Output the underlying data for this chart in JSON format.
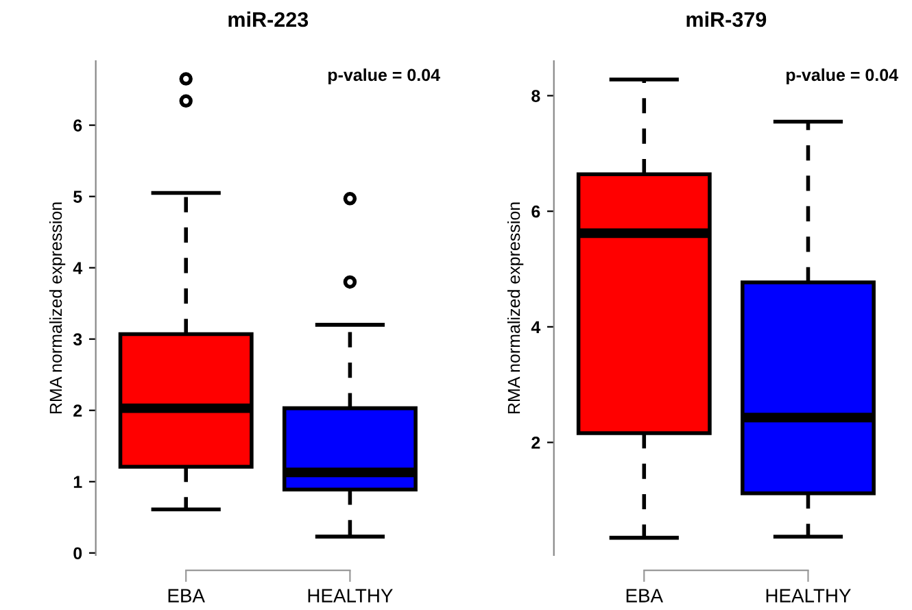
{
  "chart_data": [
    {
      "type": "box",
      "title": "miR-223",
      "ylabel": "RMA normalized expression",
      "annotations": [
        "p-value = 0.04"
      ],
      "categories": [
        "EBA",
        "HEALTHY"
      ],
      "colors": [
        "#ff0000",
        "#0000ff"
      ],
      "boxes": [
        {
          "low": 0.61,
          "q1": 1.21,
          "median": 2.03,
          "q3": 3.07,
          "high": 5.05,
          "outliers": [
            6.34,
            6.65
          ]
        },
        {
          "low": 0.23,
          "q1": 0.89,
          "median": 1.13,
          "q3": 2.03,
          "high": 3.2,
          "outliers": [
            3.8,
            4.97
          ]
        }
      ],
      "ylim": [
        -0.03,
        6.9
      ],
      "yticks": [
        0,
        1,
        2,
        3,
        4,
        5,
        6
      ],
      "grid": false,
      "legend": false
    },
    {
      "type": "box",
      "title": "miR-379",
      "ylabel": "RMA normalized expression",
      "annotations": [
        "p-value = 0.04"
      ],
      "categories": [
        "EBA",
        "HEALTHY"
      ],
      "colors": [
        "#ff0000",
        "#0000ff"
      ],
      "boxes": [
        {
          "low": 0.35,
          "q1": 2.16,
          "median": 5.62,
          "q3": 6.64,
          "high": 8.28
        },
        {
          "low": 0.37,
          "q1": 1.12,
          "median": 2.43,
          "q3": 4.77,
          "high": 7.55
        }
      ],
      "ylim": [
        0.05,
        8.6
      ],
      "yticks": [
        2,
        4,
        6,
        8
      ],
      "grid": false,
      "legend": false
    }
  ]
}
